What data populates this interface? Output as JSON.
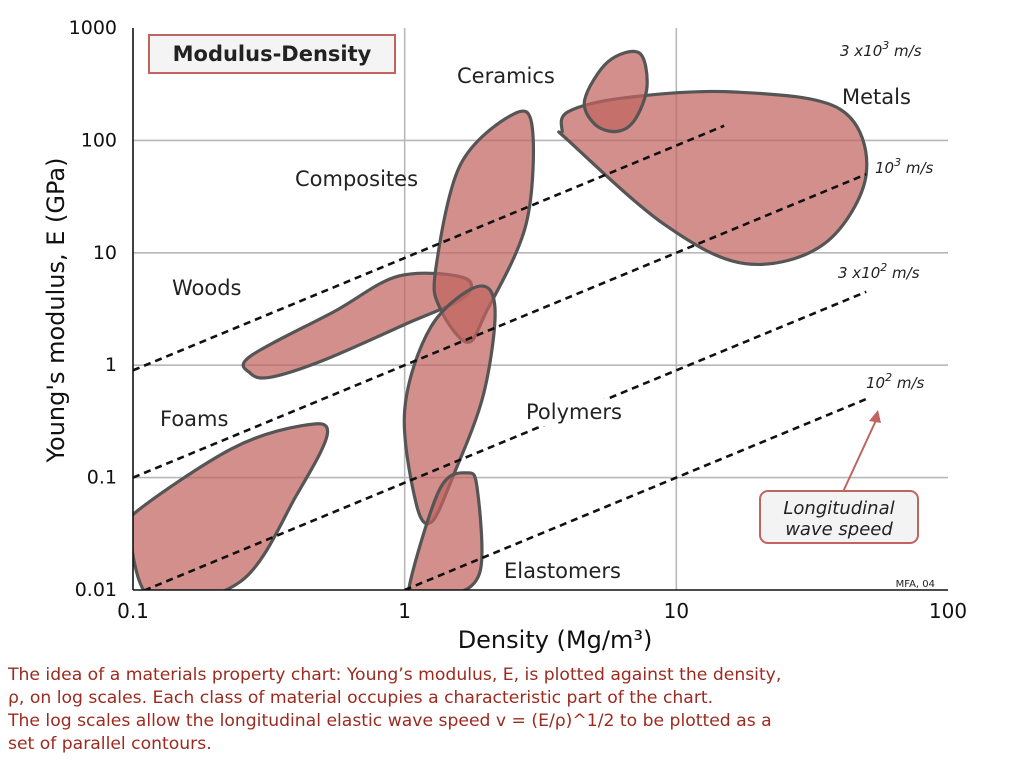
{
  "chart_data": {
    "type": "scatter",
    "title": "Modulus-Density",
    "xlabel": "Density",
    "xlabel_unit": "(Mg/m3)",
    "ylabel": "Young's modulus, E (GPa)",
    "x_scale": "log",
    "y_scale": "log",
    "xlim": [
      0.1,
      100
    ],
    "ylim": [
      0.01,
      1000
    ],
    "x_ticks": [
      "0.1",
      "1",
      "10",
      "100"
    ],
    "y_ticks": [
      "0.01",
      "0.1",
      "1",
      "10",
      "100",
      "1000"
    ],
    "grid": true,
    "families": [
      {
        "name": "Ceramics",
        "label": "Ceramics",
        "density_range": [
          4.5,
          7.9
        ],
        "modulus_range": [
          120,
          600
        ]
      },
      {
        "name": "Metals",
        "label": "Metals",
        "density_range": [
          3.8,
          50
        ],
        "modulus_range": [
          8,
          270
        ]
      },
      {
        "name": "Composites",
        "label": "Composites",
        "density_range": [
          1.2,
          3.0
        ],
        "modulus_range": [
          1.6,
          180
        ]
      },
      {
        "name": "Woods",
        "label": "Woods",
        "density_range": [
          0.25,
          1.7
        ],
        "modulus_range": [
          0.8,
          7
        ]
      },
      {
        "name": "Polymers",
        "label": "Polymers",
        "density_range": [
          1.0,
          2.2
        ],
        "modulus_range": [
          0.04,
          5
        ]
      },
      {
        "name": "Foams",
        "label": "Foams",
        "density_range": [
          0.1,
          0.5
        ],
        "modulus_range": [
          0.01,
          0.28
        ]
      },
      {
        "name": "Elastomers",
        "label": "Elastomers",
        "density_range": [
          0.95,
          2.0
        ],
        "modulus_range": [
          0.01,
          0.11
        ]
      }
    ],
    "wave_speed_contours": [
      {
        "label_base": "3 x10",
        "label_exp": "3",
        "label_unit": " m/s",
        "speed": 3000,
        "points": [
          [
            0.1,
            0.9
          ],
          [
            15,
            135
          ]
        ]
      },
      {
        "label_base": "10",
        "label_exp": "3",
        "label_unit": " m/s",
        "speed": 1000,
        "points": [
          [
            0.1,
            0.1
          ],
          [
            50,
            50
          ]
        ]
      },
      {
        "label_base": "3 x10",
        "label_exp": "2",
        "label_unit": " m/s",
        "speed": 300,
        "points": [
          [
            0.1,
            0.009
          ],
          [
            50,
            4.5
          ]
        ]
      },
      {
        "label_base": "10",
        "label_exp": "2",
        "label_unit": " m/s",
        "speed": 100,
        "points": [
          [
            1,
            0.01
          ],
          [
            50,
            0.5
          ]
        ]
      }
    ],
    "annotation_box": "Longitudinal wave speed",
    "credit": "MFA, 04",
    "colors": {
      "region_fill": "#c0645f",
      "region_stroke": "#555555",
      "gridline": "#b8b8b8",
      "title_box_border": "#c0645f",
      "annotation_border": "#c0645f",
      "annotation_fill": "#f3f3f3",
      "arrow": "#c0645f",
      "caption": "#9c2a1f"
    }
  },
  "caption": {
    "line1": "The idea of a materials property chart: Young’s modulus, E, is plotted against the density,",
    "line2": "ρ, on log scales. Each class of material occupies a characteristic part of the chart.",
    "line3": "The log scales allow the longitudinal elastic wave speed v = (E/ρ)^1/2 to be plotted as a",
    "line4": "set of parallel contours."
  }
}
